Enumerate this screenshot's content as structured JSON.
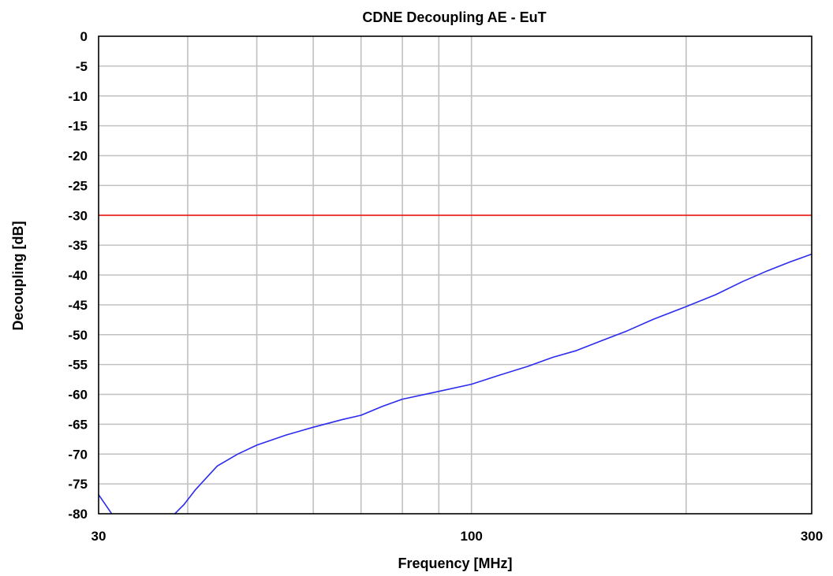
{
  "chart_data": {
    "type": "line",
    "title": "CDNE Decoupling AE - EuT",
    "xlabel": "Frequency [MHz]",
    "ylabel": "Decoupling [dB]",
    "x_scale": "log",
    "xlim": [
      30,
      300
    ],
    "ylim": [
      -80,
      0
    ],
    "x_ticks": [
      30,
      100,
      300
    ],
    "x_tick_labels": [
      "30",
      "100",
      "300"
    ],
    "x_minor_gridlines": [
      40,
      50,
      60,
      70,
      80,
      90,
      200
    ],
    "y_ticks": [
      0,
      -5,
      -10,
      -15,
      -20,
      -25,
      -30,
      -35,
      -40,
      -45,
      -50,
      -55,
      -60,
      -65,
      -70,
      -75,
      -80
    ],
    "y_tick_labels": [
      "0",
      "-5",
      "-10",
      "-15",
      "-20",
      "-25",
      "-30",
      "-35",
      "-40",
      "-45",
      "-50",
      "-55",
      "-60",
      "-65",
      "-70",
      "-75",
      "-80"
    ],
    "grid": true,
    "limit_line": {
      "y": -30,
      "color": "#e8231e"
    },
    "series": [
      {
        "color": "#2b2bf0",
        "x": [
          30,
          31.5,
          32.5,
          34,
          36,
          38,
          39.5,
          41,
          44,
          47,
          50,
          55,
          60,
          66,
          70,
          75,
          80,
          90,
          100,
          110,
          120,
          130,
          140,
          150,
          165,
          180,
          200,
          220,
          240,
          260,
          280,
          300
        ],
        "y": [
          -76.8,
          -80.5,
          -83,
          -84,
          -82.5,
          -80.5,
          -78.5,
          -76,
          -72,
          -70,
          -68.5,
          -66.8,
          -65.5,
          -64.2,
          -63.5,
          -62,
          -60.8,
          -59.5,
          -58.3,
          -56.7,
          -55.3,
          -53.8,
          -52.7,
          -51.3,
          -49.4,
          -47.4,
          -45.3,
          -43.3,
          -41.1,
          -39.3,
          -37.8,
          -36.5
        ]
      }
    ]
  }
}
